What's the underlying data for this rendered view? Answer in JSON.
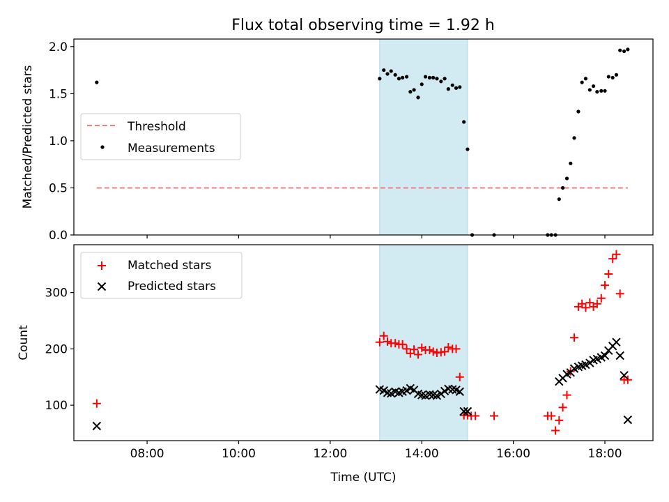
{
  "title": "Flux total observing time = 1.92 h",
  "colors": {
    "threshold": "#f08080",
    "measure": "#000000",
    "matched": "#ff0000",
    "predicted": "#000000",
    "span": "#add8e6"
  },
  "chart_data": [
    {
      "type": "scatter",
      "ylabel": "Matched/Predicted stars",
      "xlim": [
        6.4,
        19.05
      ],
      "ylim": [
        0,
        2.08
      ],
      "y_ticks": [
        0,
        0.5,
        1,
        1.5,
        2
      ],
      "y_tick_labels": [
        "0.0",
        "0.5",
        "1.0",
        "1.5",
        "2.0"
      ],
      "shaded_span": [
        13.08,
        15.0
      ],
      "threshold": {
        "name": "Threshold",
        "y": 0.5,
        "x": [
          6.9,
          18.5
        ],
        "style": "dashed"
      },
      "legend": {
        "position": "center-left",
        "entries": [
          "Threshold",
          "Measurements"
        ]
      },
      "series": [
        {
          "name": "Measurements",
          "marker": "dot",
          "x": [
            6.9,
            13.08,
            13.17,
            13.25,
            13.33,
            13.42,
            13.5,
            13.58,
            13.67,
            13.75,
            13.83,
            13.92,
            14.0,
            14.08,
            14.17,
            14.25,
            14.33,
            14.42,
            14.5,
            14.58,
            14.67,
            14.75,
            14.83,
            14.92,
            15.0,
            15.1,
            15.58,
            16.75,
            16.83,
            16.92,
            17.0,
            17.08,
            17.17,
            17.25,
            17.33,
            17.42,
            17.5,
            17.58,
            17.67,
            17.75,
            17.83,
            17.92,
            18.0,
            18.08,
            18.17,
            18.25,
            18.33,
            18.42,
            18.5
          ],
          "y": [
            1.62,
            1.66,
            1.75,
            1.71,
            1.74,
            1.7,
            1.66,
            1.67,
            1.68,
            1.52,
            1.54,
            1.46,
            1.6,
            1.68,
            1.67,
            1.67,
            1.66,
            1.63,
            1.66,
            1.55,
            1.59,
            1.56,
            1.57,
            1.2,
            0.91,
            0.0,
            0.0,
            0.0,
            0.0,
            0.0,
            0.38,
            0.5,
            0.6,
            0.76,
            1.03,
            1.31,
            1.62,
            1.66,
            1.54,
            1.58,
            1.52,
            1.53,
            1.53,
            1.68,
            1.67,
            1.7,
            1.96,
            1.95,
            1.97
          ]
        }
      ]
    },
    {
      "type": "scatter",
      "ylabel": "Count",
      "xlabel": "Time (UTC)",
      "xlim": [
        6.4,
        19.05
      ],
      "ylim": [
        37,
        385
      ],
      "x_ticks": [
        8,
        10,
        12,
        14,
        16,
        18
      ],
      "x_tick_labels": [
        "08:00",
        "10:00",
        "12:00",
        "14:00",
        "16:00",
        "18:00"
      ],
      "y_ticks": [
        100,
        200,
        300
      ],
      "y_tick_labels": [
        "100",
        "200",
        "300"
      ],
      "shaded_span": [
        13.08,
        15.0
      ],
      "legend": {
        "position": "top-left",
        "entries": [
          "Matched stars",
          "Predicted stars"
        ]
      },
      "series": [
        {
          "name": "Matched stars",
          "marker": "plus",
          "x": [
            6.9,
            13.08,
            13.17,
            13.25,
            13.33,
            13.42,
            13.5,
            13.58,
            13.67,
            13.75,
            13.83,
            13.92,
            14.0,
            14.08,
            14.17,
            14.25,
            14.33,
            14.42,
            14.5,
            14.58,
            14.67,
            14.75,
            14.83,
            14.92,
            15.0,
            15.08,
            15.17,
            15.58,
            16.75,
            16.83,
            16.92,
            17.0,
            17.08,
            17.17,
            17.25,
            17.33,
            17.42,
            17.5,
            17.58,
            17.67,
            17.75,
            17.83,
            17.92,
            18.0,
            18.08,
            18.17,
            18.25,
            18.33,
            18.42,
            18.5
          ],
          "y": [
            103,
            212,
            223,
            213,
            210,
            210,
            208,
            208,
            200,
            192,
            199,
            190,
            202,
            198,
            198,
            195,
            193,
            194,
            195,
            203,
            200,
            200,
            150,
            82,
            82,
            81,
            81,
            81,
            81,
            81,
            55,
            73,
            96,
            118,
            160,
            220,
            275,
            280,
            273,
            282,
            275,
            280,
            290,
            313,
            333,
            360,
            368,
            298,
            145,
            145
          ],
          "x_fix": true
        },
        {
          "name": "Predicted stars",
          "marker": "cross",
          "x": [
            6.9,
            13.08,
            13.17,
            13.25,
            13.33,
            13.42,
            13.5,
            13.58,
            13.67,
            13.75,
            13.83,
            13.92,
            14.0,
            14.08,
            14.17,
            14.25,
            14.33,
            14.42,
            14.5,
            14.58,
            14.67,
            14.75,
            14.83,
            14.92,
            15.0,
            17.0,
            17.08,
            17.17,
            17.25,
            17.33,
            17.42,
            17.5,
            17.58,
            17.67,
            17.75,
            17.83,
            17.92,
            18.0,
            18.08,
            18.17,
            18.25,
            18.33,
            18.42,
            18.5
          ],
          "y": [
            63,
            128,
            126,
            122,
            121,
            124,
            122,
            124,
            126,
            130,
            127,
            120,
            118,
            117,
            119,
            118,
            117,
            120,
            125,
            129,
            128,
            127,
            124,
            89,
            89,
            142,
            148,
            155,
            158,
            165,
            168,
            170,
            172,
            175,
            180,
            182,
            185,
            188,
            197,
            205,
            212,
            188,
            153,
            74
          ]
        }
      ]
    }
  ]
}
